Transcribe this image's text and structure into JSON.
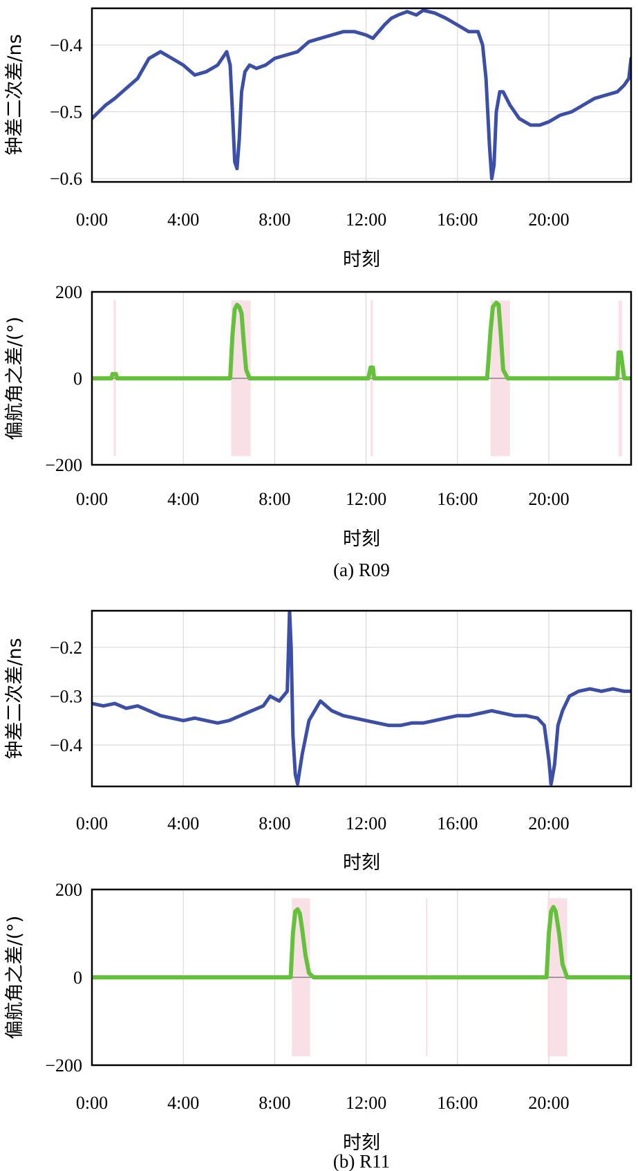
{
  "chart_data": [
    {
      "type": "line",
      "panel": "a-top",
      "xlabel": "时刻",
      "ylabel": "钟差二次差/ns",
      "xlim": [
        0,
        23.6
      ],
      "ylim": [
        -0.605,
        -0.345
      ],
      "xticks": [
        "0:00",
        "4:00",
        "8:00",
        "12:00",
        "16:00",
        "20:00"
      ],
      "yticks": [
        "-0.4",
        "-0.5",
        "-0.6"
      ],
      "ytick_values": [
        -0.4,
        -0.5,
        -0.6
      ],
      "grid": true,
      "series": [
        {
          "color": "#3b4ea8",
          "x": [
            0,
            0.3,
            0.6,
            1.0,
            1.5,
            2.0,
            2.5,
            3.0,
            3.5,
            4.0,
            4.5,
            5.0,
            5.5,
            5.9,
            6.05,
            6.15,
            6.25,
            6.35,
            6.45,
            6.55,
            6.7,
            6.9,
            7.2,
            7.6,
            8.0,
            8.5,
            9.0,
            9.5,
            10.0,
            10.5,
            11.0,
            11.5,
            12.0,
            12.3,
            12.8,
            13.1,
            13.4,
            13.8,
            14.2,
            14.5,
            15.0,
            15.5,
            16.0,
            16.5,
            16.9,
            17.1,
            17.25,
            17.4,
            17.5,
            17.6,
            17.7,
            17.85,
            18.0,
            18.3,
            18.7,
            19.2,
            19.6,
            20.0,
            20.5,
            21.0,
            21.5,
            22.0,
            22.5,
            23.0,
            23.3,
            23.5,
            23.6
          ],
          "y": [
            -0.51,
            -0.5,
            -0.49,
            -0.48,
            -0.465,
            -0.45,
            -0.42,
            -0.41,
            -0.42,
            -0.43,
            -0.445,
            -0.44,
            -0.43,
            -0.41,
            -0.43,
            -0.5,
            -0.575,
            -0.585,
            -0.54,
            -0.47,
            -0.44,
            -0.43,
            -0.435,
            -0.43,
            -0.42,
            -0.415,
            -0.41,
            -0.395,
            -0.39,
            -0.385,
            -0.38,
            -0.38,
            -0.385,
            -0.39,
            -0.37,
            -0.36,
            -0.355,
            -0.35,
            -0.355,
            -0.348,
            -0.352,
            -0.36,
            -0.37,
            -0.38,
            -0.38,
            -0.4,
            -0.45,
            -0.55,
            -0.6,
            -0.58,
            -0.5,
            -0.47,
            -0.47,
            -0.49,
            -0.51,
            -0.52,
            -0.52,
            -0.515,
            -0.505,
            -0.5,
            -0.49,
            -0.48,
            -0.475,
            -0.47,
            -0.46,
            -0.45,
            -0.42
          ]
        }
      ]
    },
    {
      "type": "line",
      "panel": "a-bottom",
      "xlabel": "时刻",
      "ylabel": "偏航角之差/(°)",
      "xlim": [
        0,
        23.6
      ],
      "ylim": [
        -200,
        200
      ],
      "xticks": [
        "0:00",
        "4:00",
        "8:00",
        "12:00",
        "16:00",
        "20:00"
      ],
      "yticks": [
        "200",
        "0",
        "-200"
      ],
      "ytick_values": [
        200,
        0,
        -200
      ],
      "grid": true,
      "shaded_intervals": [
        [
          0.95,
          1.05
        ],
        [
          6.1,
          6.95
        ],
        [
          12.2,
          12.3
        ],
        [
          17.45,
          18.3
        ],
        [
          23.05,
          23.2
        ]
      ],
      "series": [
        {
          "color": "#63c13a",
          "x": [
            0,
            0.85,
            0.9,
            1.05,
            1.1,
            6.05,
            6.15,
            6.25,
            6.35,
            6.45,
            6.55,
            6.65,
            6.75,
            6.9,
            12.1,
            12.2,
            12.3,
            12.35,
            17.3,
            17.45,
            17.55,
            17.7,
            17.8,
            17.9,
            18.0,
            18.2,
            23.0,
            23.05,
            23.15,
            23.3,
            23.6
          ],
          "y": [
            0,
            0,
            10,
            10,
            0,
            0,
            100,
            160,
            170,
            165,
            150,
            80,
            20,
            0,
            0,
            25,
            25,
            0,
            0,
            110,
            165,
            175,
            170,
            100,
            20,
            0,
            0,
            60,
            60,
            0,
            0
          ]
        }
      ]
    },
    {
      "type": "line",
      "panel": "b-top",
      "xlabel": "时刻",
      "ylabel": "钟差二次差/ns",
      "xlim": [
        0,
        23.6
      ],
      "ylim": [
        -0.485,
        -0.125
      ],
      "xticks": [
        "0:00",
        "4:00",
        "8:00",
        "12:00",
        "16:00",
        "20:00"
      ],
      "yticks": [
        "-0.2",
        "-0.3",
        "-0.4"
      ],
      "ytick_values": [
        -0.2,
        -0.3,
        -0.4
      ],
      "grid": true,
      "series": [
        {
          "color": "#3b4ea8",
          "x": [
            0,
            0.5,
            1.0,
            1.5,
            2.0,
            2.5,
            3.0,
            3.5,
            4.0,
            4.5,
            5.0,
            5.5,
            6.0,
            6.5,
            7.0,
            7.5,
            7.8,
            8.2,
            8.55,
            8.65,
            8.72,
            8.8,
            8.9,
            9.0,
            9.2,
            9.5,
            10.0,
            10.5,
            11.0,
            11.5,
            12.0,
            12.5,
            13.0,
            13.5,
            14.0,
            14.5,
            15.0,
            15.5,
            16.0,
            16.5,
            17.0,
            17.5,
            18.0,
            18.5,
            19.0,
            19.5,
            19.8,
            20.0,
            20.1,
            20.25,
            20.4,
            20.6,
            20.9,
            21.3,
            21.8,
            22.3,
            22.8,
            23.3,
            23.6
          ],
          "y": [
            -0.315,
            -0.32,
            -0.315,
            -0.325,
            -0.32,
            -0.33,
            -0.34,
            -0.345,
            -0.35,
            -0.345,
            -0.35,
            -0.355,
            -0.35,
            -0.34,
            -0.33,
            -0.32,
            -0.3,
            -0.31,
            -0.29,
            -0.125,
            -0.2,
            -0.38,
            -0.46,
            -0.48,
            -0.42,
            -0.35,
            -0.31,
            -0.33,
            -0.34,
            -0.345,
            -0.35,
            -0.355,
            -0.36,
            -0.36,
            -0.355,
            -0.355,
            -0.35,
            -0.345,
            -0.34,
            -0.34,
            -0.335,
            -0.33,
            -0.335,
            -0.34,
            -0.34,
            -0.345,
            -0.36,
            -0.43,
            -0.48,
            -0.44,
            -0.36,
            -0.33,
            -0.3,
            -0.29,
            -0.285,
            -0.29,
            -0.285,
            -0.29,
            -0.29
          ]
        }
      ]
    },
    {
      "type": "line",
      "panel": "b-bottom",
      "xlabel": "时刻",
      "ylabel": "偏航角之差/(°)",
      "xlim": [
        0,
        23.6
      ],
      "ylim": [
        -200,
        200
      ],
      "xticks": [
        "0:00",
        "4:00",
        "8:00",
        "12:00",
        "16:00",
        "20:00"
      ],
      "yticks": [
        "200",
        "0",
        "-200"
      ],
      "ytick_values": [
        200,
        0,
        -200
      ],
      "grid": true,
      "shaded_intervals": [
        [
          8.75,
          9.55
        ],
        [
          14.62,
          14.68
        ],
        [
          19.95,
          20.8
        ]
      ],
      "series": [
        {
          "color": "#63c13a",
          "x": [
            0,
            8.7,
            8.8,
            8.9,
            9.0,
            9.1,
            9.2,
            9.35,
            9.5,
            9.7,
            19.9,
            20.0,
            20.1,
            20.2,
            20.3,
            20.45,
            20.6,
            20.8,
            23.6
          ],
          "y": [
            0,
            0,
            100,
            150,
            155,
            145,
            110,
            50,
            10,
            0,
            0,
            100,
            150,
            160,
            150,
            100,
            30,
            0,
            0
          ]
        }
      ]
    }
  ],
  "captions": {
    "a": "(a) R09",
    "b": "(b) R11"
  }
}
